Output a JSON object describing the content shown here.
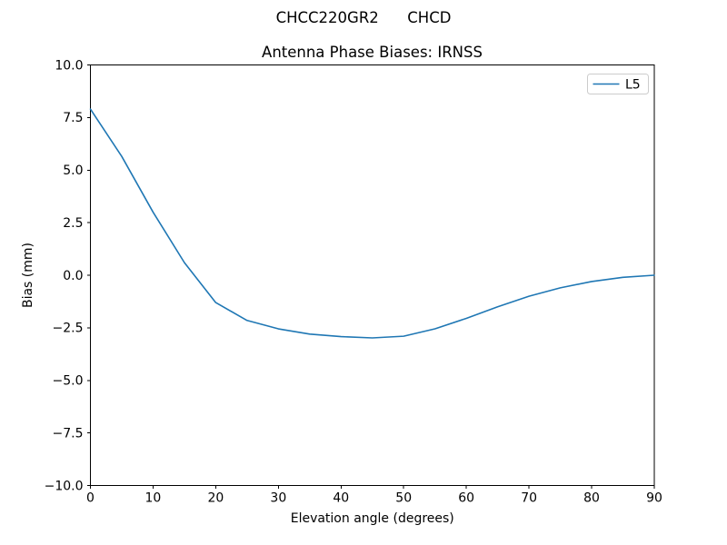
{
  "chart_data": {
    "type": "line",
    "suptitle": "CHCC220GR2      CHCD",
    "title": "Antenna Phase Biases: IRNSS",
    "xlabel": "Elevation angle (degrees)",
    "ylabel": "Bias (mm)",
    "xlim": [
      0,
      90
    ],
    "ylim": [
      -10.0,
      10.0
    ],
    "xticks": [
      0,
      10,
      20,
      30,
      40,
      50,
      60,
      70,
      80,
      90
    ],
    "xtick_labels": [
      "0",
      "10",
      "20",
      "30",
      "40",
      "50",
      "60",
      "70",
      "80",
      "90"
    ],
    "yticks": [
      -10.0,
      -7.5,
      -5.0,
      -2.5,
      0.0,
      2.5,
      5.0,
      7.5,
      10.0
    ],
    "ytick_labels": [
      "−10.0",
      "−7.5",
      "−5.0",
      "−2.5",
      "0.0",
      "2.5",
      "5.0",
      "7.5",
      "10.0"
    ],
    "grid": false,
    "background": "#ffffff",
    "text_color": "#000000",
    "legend": {
      "position": "upper right",
      "entries": [
        {
          "label": "L5",
          "color": "#1f77b4"
        }
      ]
    },
    "series": [
      {
        "name": "L5",
        "color": "#1f77b4",
        "x": [
          0,
          5,
          10,
          15,
          20,
          25,
          30,
          35,
          40,
          45,
          50,
          55,
          60,
          65,
          70,
          75,
          80,
          85,
          90
        ],
        "y": [
          7.9,
          5.65,
          3.0,
          0.6,
          -1.3,
          -2.15,
          -2.55,
          -2.8,
          -2.92,
          -2.98,
          -2.9,
          -2.55,
          -2.05,
          -1.5,
          -1.0,
          -0.6,
          -0.3,
          -0.1,
          0.0
        ]
      }
    ]
  }
}
